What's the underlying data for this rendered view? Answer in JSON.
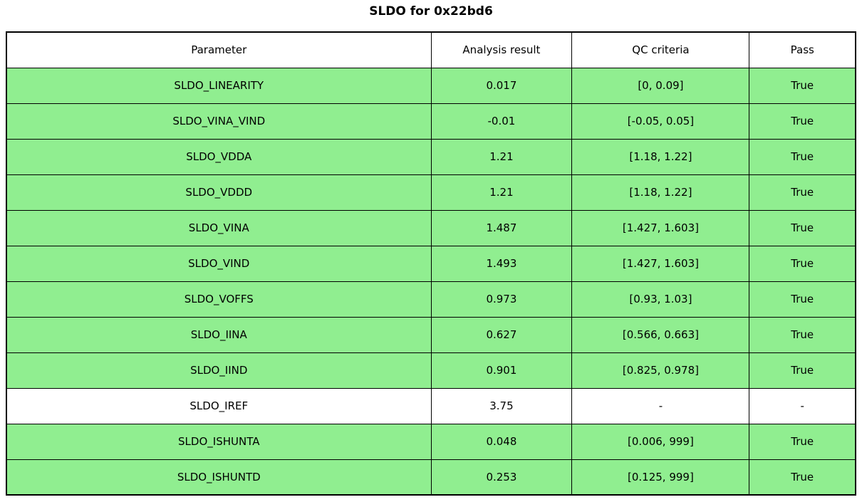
{
  "title": "SLDO for 0x22bd6",
  "colors": {
    "pass_row_green": "#90EE90",
    "neutral_row_white": "#FFFFFF",
    "border_black": "#000000"
  },
  "table": {
    "columns": [
      "Parameter",
      "Analysis result",
      "QC criteria",
      "Pass"
    ],
    "rows": [
      {
        "parameter": "SLDO_LINEARITY",
        "result": "0.017",
        "criteria": "[0, 0.09]",
        "pass": "True",
        "highlight": true
      },
      {
        "parameter": "SLDO_VINA_VIND",
        "result": "-0.01",
        "criteria": "[-0.05, 0.05]",
        "pass": "True",
        "highlight": true
      },
      {
        "parameter": "SLDO_VDDA",
        "result": "1.21",
        "criteria": "[1.18, 1.22]",
        "pass": "True",
        "highlight": true
      },
      {
        "parameter": "SLDO_VDDD",
        "result": "1.21",
        "criteria": "[1.18, 1.22]",
        "pass": "True",
        "highlight": true
      },
      {
        "parameter": "SLDO_VINA",
        "result": "1.487",
        "criteria": "[1.427, 1.603]",
        "pass": "True",
        "highlight": true
      },
      {
        "parameter": "SLDO_VIND",
        "result": "1.493",
        "criteria": "[1.427, 1.603]",
        "pass": "True",
        "highlight": true
      },
      {
        "parameter": "SLDO_VOFFS",
        "result": "0.973",
        "criteria": "[0.93, 1.03]",
        "pass": "True",
        "highlight": true
      },
      {
        "parameter": "SLDO_IINA",
        "result": "0.627",
        "criteria": "[0.566, 0.663]",
        "pass": "True",
        "highlight": true
      },
      {
        "parameter": "SLDO_IIND",
        "result": "0.901",
        "criteria": "[0.825, 0.978]",
        "pass": "True",
        "highlight": true
      },
      {
        "parameter": "SLDO_IREF",
        "result": "3.75",
        "criteria": "-",
        "pass": "-",
        "highlight": false
      },
      {
        "parameter": "SLDO_ISHUNTA",
        "result": "0.048",
        "criteria": "[0.006, 999]",
        "pass": "True",
        "highlight": true
      },
      {
        "parameter": "SLDO_ISHUNTD",
        "result": "0.253",
        "criteria": "[0.125, 999]",
        "pass": "True",
        "highlight": true
      }
    ]
  },
  "chart_data": {
    "type": "table",
    "title": "SLDO for 0x22bd6",
    "columns": [
      "Parameter",
      "Analysis result",
      "QC criteria",
      "Pass"
    ],
    "rows": [
      [
        "SLDO_LINEARITY",
        0.017,
        "[0, 0.09]",
        "True"
      ],
      [
        "SLDO_VINA_VIND",
        -0.01,
        "[-0.05, 0.05]",
        "True"
      ],
      [
        "SLDO_VDDA",
        1.21,
        "[1.18, 1.22]",
        "True"
      ],
      [
        "SLDO_VDDD",
        1.21,
        "[1.18, 1.22]",
        "True"
      ],
      [
        "SLDO_VINA",
        1.487,
        "[1.427, 1.603]",
        "True"
      ],
      [
        "SLDO_VIND",
        1.493,
        "[1.427, 1.603]",
        "True"
      ],
      [
        "SLDO_VOFFS",
        0.973,
        "[0.93, 1.03]",
        "True"
      ],
      [
        "SLDO_IINA",
        0.627,
        "[0.566, 0.663]",
        "True"
      ],
      [
        "SLDO_IIND",
        0.901,
        "[0.825, 0.978]",
        "True"
      ],
      [
        "SLDO_IREF",
        3.75,
        "-",
        "-"
      ],
      [
        "SLDO_ISHUNTA",
        0.048,
        "[0.006, 999]",
        "True"
      ],
      [
        "SLDO_ISHUNTD",
        0.253,
        "[0.125, 999]",
        "True"
      ]
    ],
    "layout_hints": {
      "row_fill_pass": "#90EE90",
      "row_fill_neutral": "#FFFFFF",
      "grid": true,
      "header_fill": "#FFFFFF"
    }
  }
}
